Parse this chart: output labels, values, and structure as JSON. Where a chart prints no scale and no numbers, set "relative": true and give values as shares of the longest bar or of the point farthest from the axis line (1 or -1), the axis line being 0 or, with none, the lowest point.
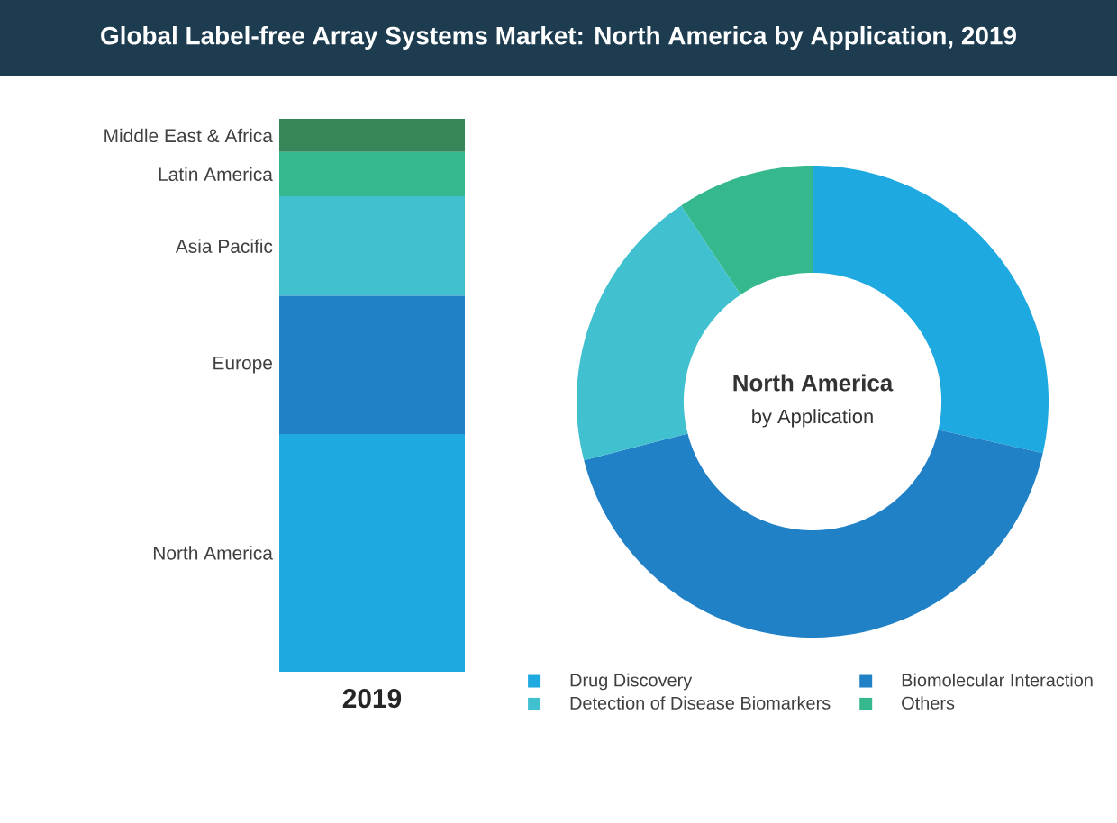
{
  "chart_data": [
    {
      "type": "bar",
      "title": "Global Label-free Array Systems Market: North America by Application, 2019",
      "categories": [
        "2019"
      ],
      "stacked": true,
      "relative": true,
      "series": [
        {
          "name": "North America",
          "color": "#1ea9e1",
          "values": [
            0.43
          ]
        },
        {
          "name": "Europe",
          "color": "#2181c6",
          "values": [
            0.25
          ]
        },
        {
          "name": "Asia Pacific",
          "color": "#41c0cf",
          "values": [
            0.18
          ]
        },
        {
          "name": "Latin America",
          "color": "#35b88e",
          "values": [
            0.08
          ]
        },
        {
          "name": "Middle East & Africa",
          "color": "#36865a",
          "values": [
            0.06
          ]
        }
      ]
    },
    {
      "type": "donut",
      "title": "North America",
      "subtitle": "by Application",
      "categories": [
        "Drug Discovery",
        "Biomolecular Interaction",
        "Detection of Disease Biomarkers",
        "Others"
      ],
      "values": [
        28.5,
        42.5,
        19.6,
        9.4
      ],
      "colors": [
        "#1ea9e1",
        "#2181c6",
        "#41c0cf",
        "#35b88e"
      ],
      "legend": "bottom"
    }
  ]
}
